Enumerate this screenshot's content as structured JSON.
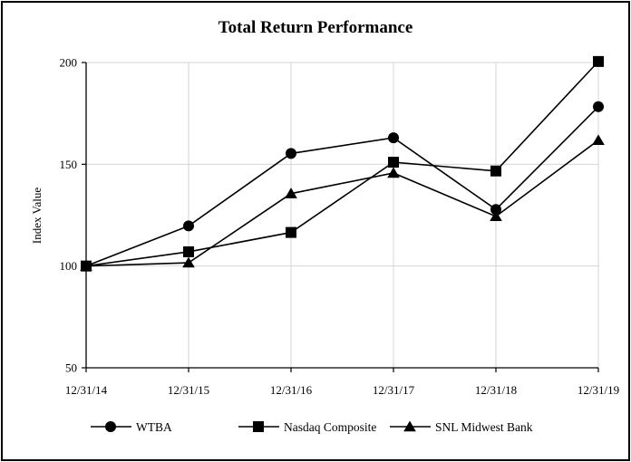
{
  "chart_data": {
    "type": "line",
    "title": "Total Return Performance",
    "xlabel": "",
    "ylabel": "Index Value",
    "categories": [
      "12/31/14",
      "12/31/15",
      "12/31/16",
      "12/31/17",
      "12/31/18",
      "12/31/19"
    ],
    "ylim": [
      50,
      200
    ],
    "yticks": [
      50,
      100,
      150,
      200
    ],
    "grid": true,
    "legend": "bottom",
    "series": [
      {
        "name": "WTBA",
        "marker": "circle",
        "values": [
          100,
          119.7,
          155.3,
          163.0,
          127.8,
          178.3
        ]
      },
      {
        "name": "Nasdaq Composite",
        "marker": "square",
        "values": [
          100,
          107.0,
          116.5,
          151.0,
          146.7,
          200.5
        ]
      },
      {
        "name": "SNL Midwest Bank",
        "marker": "triangle",
        "values": [
          100,
          101.6,
          135.6,
          145.7,
          124.4,
          161.8
        ]
      }
    ]
  }
}
